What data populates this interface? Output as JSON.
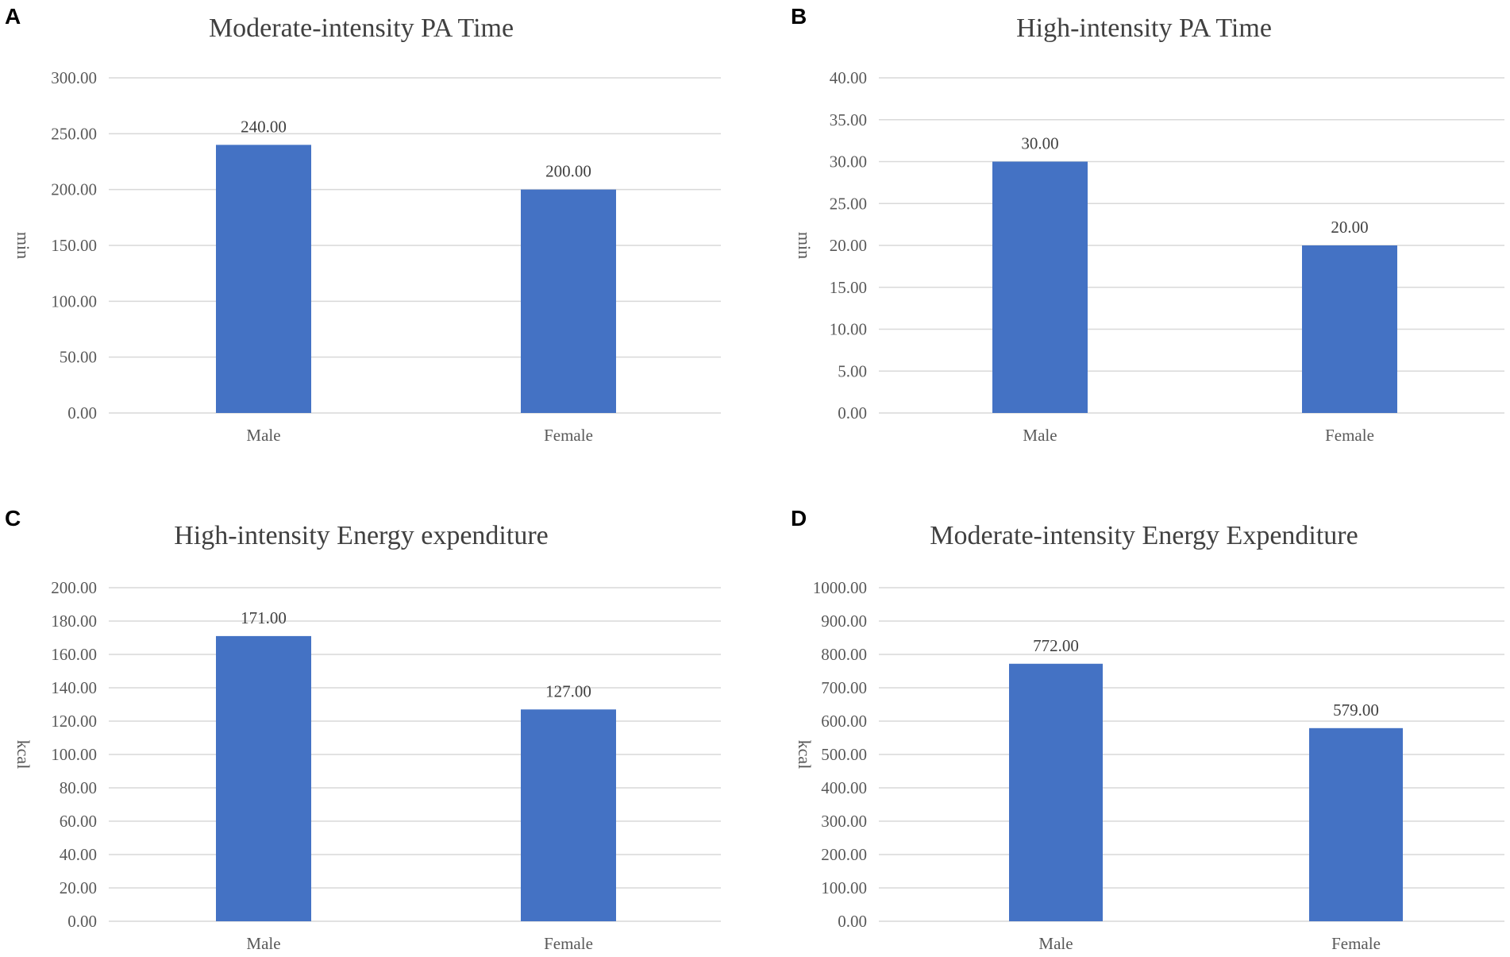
{
  "colors": {
    "bar": "#4472c4",
    "grid": "#d9d9d9"
  },
  "chart_data": [
    {
      "panel": "A",
      "type": "bar",
      "title": "Moderate-intensity  PA Time",
      "xlabel": "",
      "ylabel": "min",
      "categories": [
        "Male",
        "Female"
      ],
      "values": [
        240,
        200
      ],
      "value_labels": [
        "240.00",
        "200.00"
      ],
      "ylim": [
        0,
        300
      ],
      "yticks": [
        "0.00",
        "50.00",
        "100.00",
        "150.00",
        "200.00",
        "250.00",
        "300.00"
      ],
      "grid": true,
      "legend": "none"
    },
    {
      "panel": "B",
      "type": "bar",
      "title": "High-intensity  PA Time",
      "xlabel": "",
      "ylabel": "min",
      "categories": [
        "Male",
        "Female"
      ],
      "values": [
        30,
        20
      ],
      "value_labels": [
        "30.00",
        "20.00"
      ],
      "ylim": [
        0,
        40
      ],
      "yticks": [
        "0.00",
        "5.00",
        "10.00",
        "15.00",
        "20.00",
        "25.00",
        "30.00",
        "35.00",
        "40.00"
      ],
      "grid": true,
      "legend": "none"
    },
    {
      "panel": "C",
      "type": "bar",
      "title": "High-intensity  Energy expenditure",
      "xlabel": "",
      "ylabel": "kcal",
      "categories": [
        "Male",
        "Female"
      ],
      "values": [
        171,
        127
      ],
      "value_labels": [
        "171.00",
        "127.00"
      ],
      "ylim": [
        0,
        200
      ],
      "yticks": [
        "0.00",
        "20.00",
        "40.00",
        "60.00",
        "80.00",
        "100.00",
        "120.00",
        "140.00",
        "160.00",
        "180.00",
        "200.00"
      ],
      "grid": true,
      "legend": "none"
    },
    {
      "panel": "D",
      "type": "bar",
      "title": "Moderate-intensity  Energy Expenditure",
      "xlabel": "",
      "ylabel": "kcal",
      "categories": [
        "Male",
        "Female"
      ],
      "values": [
        772,
        579
      ],
      "value_labels": [
        "772.00",
        "579.00"
      ],
      "ylim": [
        0,
        1000
      ],
      "yticks": [
        "0.00",
        "100.00",
        "200.00",
        "300.00",
        "400.00",
        "500.00",
        "600.00",
        "700.00",
        "800.00",
        "900.00",
        "1000.00"
      ],
      "grid": true,
      "legend": "none"
    }
  ]
}
